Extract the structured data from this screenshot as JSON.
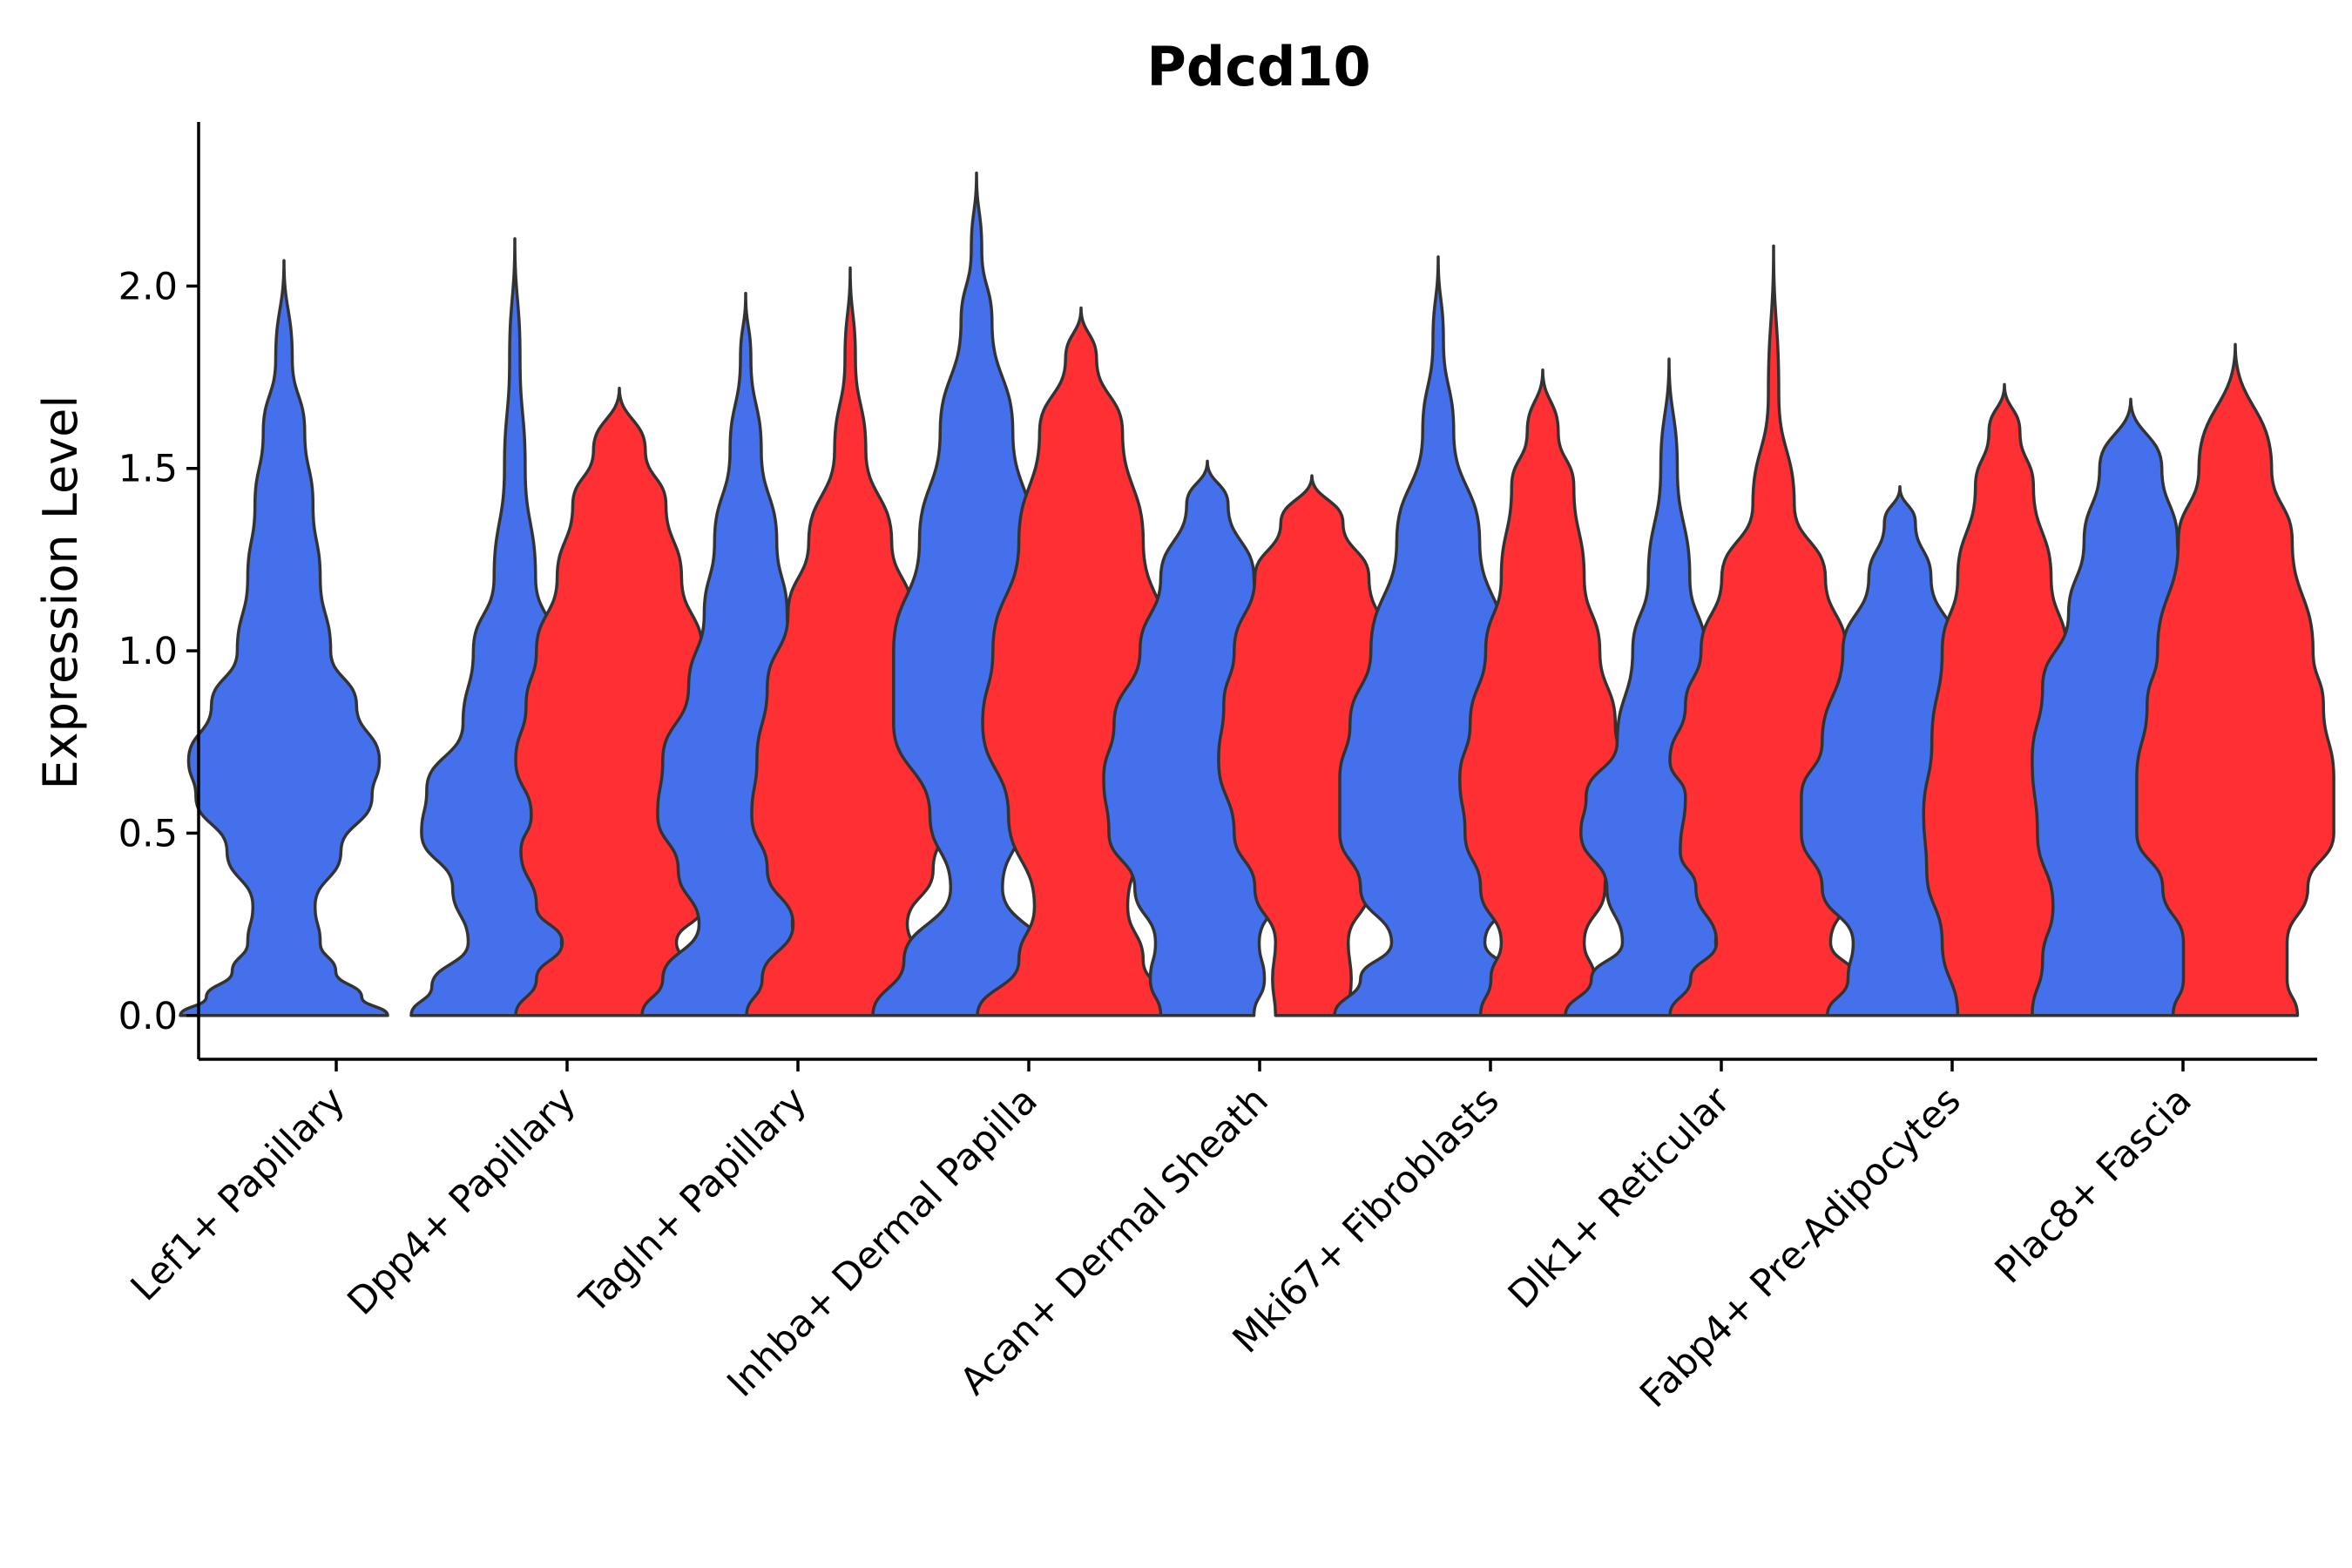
{
  "chart_data": {
    "type": "violin",
    "title": "Pdcd10",
    "xlabel": "",
    "ylabel": "Expression Level",
    "ylim": [
      -0.12,
      2.45
    ],
    "yticks": [
      0.0,
      0.5,
      1.0,
      1.5,
      2.0
    ],
    "ytick_labels": [
      "0.0",
      "0.5",
      "1.0",
      "1.5",
      "2.0"
    ],
    "grid": false,
    "legend": "none",
    "colors": {
      "group1": "#4570EB",
      "group2": "#FF3033"
    },
    "categories": [
      "Lef1+ Papillary",
      "Dpp4+ Papillary",
      "Tagln+ Papillary",
      "Inhba+ Dermal Papilla",
      "Acan+ Dermal Sheath",
      "Mki67+ Fibroblasts",
      "Dlk1+ Reticular",
      "Fabp4+ Pre-Adipocytes",
      "Plac8+ Fascia"
    ],
    "violins": [
      {
        "category": 0,
        "group": 1,
        "max": 2.07,
        "profile": [
          [
            0,
            1
          ],
          [
            0.05,
            0.75
          ],
          [
            0.12,
            0.5
          ],
          [
            0.2,
            0.35
          ],
          [
            0.3,
            0.3
          ],
          [
            0.45,
            0.55
          ],
          [
            0.6,
            0.85
          ],
          [
            0.7,
            0.92
          ],
          [
            0.85,
            0.7
          ],
          [
            1.0,
            0.45
          ],
          [
            1.2,
            0.35
          ],
          [
            1.4,
            0.28
          ],
          [
            1.6,
            0.2
          ],
          [
            1.8,
            0.08
          ],
          [
            2.07,
            0
          ]
        ]
      },
      {
        "category": 1,
        "group": 1,
        "max": 2.13,
        "profile": [
          [
            0,
            1
          ],
          [
            0.08,
            0.8
          ],
          [
            0.2,
            0.45
          ],
          [
            0.35,
            0.6
          ],
          [
            0.5,
            0.9
          ],
          [
            0.62,
            0.85
          ],
          [
            0.8,
            0.5
          ],
          [
            1.0,
            0.4
          ],
          [
            1.2,
            0.2
          ],
          [
            1.5,
            0.1
          ],
          [
            1.8,
            0.05
          ],
          [
            2.13,
            0
          ]
        ]
      },
      {
        "category": 1,
        "group": 2,
        "max": 1.72,
        "profile": [
          [
            0,
            1
          ],
          [
            0.1,
            0.8
          ],
          [
            0.2,
            0.55
          ],
          [
            0.3,
            0.8
          ],
          [
            0.45,
            0.95
          ],
          [
            0.55,
            0.85
          ],
          [
            0.7,
            1.0
          ],
          [
            0.85,
            0.9
          ],
          [
            1.0,
            0.8
          ],
          [
            1.2,
            0.6
          ],
          [
            1.4,
            0.45
          ],
          [
            1.55,
            0.25
          ],
          [
            1.72,
            0
          ]
        ]
      },
      {
        "category": 2,
        "group": 1,
        "max": 1.98,
        "profile": [
          [
            0,
            1
          ],
          [
            0.1,
            0.8
          ],
          [
            0.25,
            0.45
          ],
          [
            0.4,
            0.65
          ],
          [
            0.55,
            0.85
          ],
          [
            0.7,
            0.8
          ],
          [
            0.9,
            0.55
          ],
          [
            1.1,
            0.4
          ],
          [
            1.3,
            0.3
          ],
          [
            1.55,
            0.15
          ],
          [
            1.8,
            0.05
          ],
          [
            1.98,
            0
          ]
        ]
      },
      {
        "category": 2,
        "group": 2,
        "max": 2.05,
        "profile": [
          [
            0,
            1
          ],
          [
            0.1,
            0.85
          ],
          [
            0.25,
            0.55
          ],
          [
            0.4,
            0.8
          ],
          [
            0.55,
            0.95
          ],
          [
            0.7,
            0.9
          ],
          [
            0.9,
            0.8
          ],
          [
            1.1,
            0.6
          ],
          [
            1.3,
            0.4
          ],
          [
            1.55,
            0.15
          ],
          [
            1.8,
            0.05
          ],
          [
            2.05,
            0
          ]
        ]
      },
      {
        "category": 3,
        "group": 1,
        "max": 2.31,
        "profile": [
          [
            0,
            1
          ],
          [
            0.15,
            0.7
          ],
          [
            0.35,
            0.25
          ],
          [
            0.55,
            0.45
          ],
          [
            0.8,
            0.8
          ],
          [
            1.0,
            0.8
          ],
          [
            1.3,
            0.55
          ],
          [
            1.6,
            0.35
          ],
          [
            1.9,
            0.15
          ],
          [
            2.1,
            0.05
          ],
          [
            2.31,
            0
          ]
        ]
      },
      {
        "category": 3,
        "group": 2,
        "max": 1.94,
        "profile": [
          [
            0,
            1
          ],
          [
            0.15,
            0.6
          ],
          [
            0.3,
            0.45
          ],
          [
            0.55,
            0.7
          ],
          [
            0.8,
            0.95
          ],
          [
            1.0,
            0.85
          ],
          [
            1.3,
            0.6
          ],
          [
            1.6,
            0.4
          ],
          [
            1.8,
            0.15
          ],
          [
            1.94,
            0
          ]
        ]
      },
      {
        "category": 4,
        "group": 1,
        "max": 1.52,
        "profile": [
          [
            0,
            0.45
          ],
          [
            0.1,
            0.55
          ],
          [
            0.2,
            0.5
          ],
          [
            0.35,
            0.7
          ],
          [
            0.5,
            0.95
          ],
          [
            0.65,
            1.0
          ],
          [
            0.8,
            0.9
          ],
          [
            1.0,
            0.65
          ],
          [
            1.2,
            0.45
          ],
          [
            1.4,
            0.2
          ],
          [
            1.52,
            0
          ]
        ]
      },
      {
        "category": 4,
        "group": 2,
        "max": 1.48,
        "profile": [
          [
            0,
            0.35
          ],
          [
            0.1,
            0.38
          ],
          [
            0.2,
            0.35
          ],
          [
            0.35,
            0.55
          ],
          [
            0.5,
            0.75
          ],
          [
            0.7,
            0.9
          ],
          [
            0.85,
            0.85
          ],
          [
            1.0,
            0.75
          ],
          [
            1.2,
            0.55
          ],
          [
            1.35,
            0.3
          ],
          [
            1.48,
            0
          ]
        ]
      },
      {
        "category": 5,
        "group": 1,
        "max": 2.08,
        "profile": [
          [
            0,
            1
          ],
          [
            0.1,
            0.75
          ],
          [
            0.2,
            0.45
          ],
          [
            0.35,
            0.75
          ],
          [
            0.5,
            0.95
          ],
          [
            0.65,
            0.95
          ],
          [
            0.8,
            0.85
          ],
          [
            1.0,
            0.65
          ],
          [
            1.3,
            0.4
          ],
          [
            1.6,
            0.15
          ],
          [
            1.85,
            0.05
          ],
          [
            2.08,
            0
          ]
        ]
      },
      {
        "category": 5,
        "group": 2,
        "max": 1.77,
        "profile": [
          [
            0,
            0.6
          ],
          [
            0.1,
            0.5
          ],
          [
            0.2,
            0.4
          ],
          [
            0.35,
            0.6
          ],
          [
            0.5,
            0.75
          ],
          [
            0.65,
            0.8
          ],
          [
            0.8,
            0.7
          ],
          [
            1.0,
            0.55
          ],
          [
            1.2,
            0.4
          ],
          [
            1.45,
            0.3
          ],
          [
            1.6,
            0.15
          ],
          [
            1.77,
            0
          ]
        ]
      },
      {
        "category": 6,
        "group": 1,
        "max": 1.8,
        "profile": [
          [
            0,
            1
          ],
          [
            0.1,
            0.75
          ],
          [
            0.2,
            0.45
          ],
          [
            0.35,
            0.6
          ],
          [
            0.5,
            0.85
          ],
          [
            0.6,
            0.8
          ],
          [
            0.75,
            0.5
          ],
          [
            1.0,
            0.35
          ],
          [
            1.2,
            0.2
          ],
          [
            1.5,
            0.08
          ],
          [
            1.8,
            0
          ]
        ]
      },
      {
        "category": 6,
        "group": 2,
        "max": 2.11,
        "profile": [
          [
            0,
            1
          ],
          [
            0.1,
            0.8
          ],
          [
            0.2,
            0.55
          ],
          [
            0.35,
            0.75
          ],
          [
            0.45,
            0.9
          ],
          [
            0.6,
            0.85
          ],
          [
            0.7,
            1.0
          ],
          [
            0.85,
            0.85
          ],
          [
            1.0,
            0.7
          ],
          [
            1.2,
            0.5
          ],
          [
            1.4,
            0.2
          ],
          [
            1.7,
            0.05
          ],
          [
            2.11,
            0
          ]
        ]
      },
      {
        "category": 7,
        "group": 1,
        "max": 1.45,
        "profile": [
          [
            0,
            0.7
          ],
          [
            0.1,
            0.5
          ],
          [
            0.2,
            0.45
          ],
          [
            0.35,
            0.75
          ],
          [
            0.5,
            0.95
          ],
          [
            0.6,
            0.95
          ],
          [
            0.75,
            0.75
          ],
          [
            1.0,
            0.55
          ],
          [
            1.2,
            0.3
          ],
          [
            1.35,
            0.15
          ],
          [
            1.45,
            0
          ]
        ]
      },
      {
        "category": 7,
        "group": 2,
        "max": 1.73,
        "profile": [
          [
            0,
            0.45
          ],
          [
            0.2,
            0.6
          ],
          [
            0.4,
            0.75
          ],
          [
            0.55,
            0.78
          ],
          [
            0.75,
            0.7
          ],
          [
            1.0,
            0.6
          ],
          [
            1.2,
            0.45
          ],
          [
            1.45,
            0.28
          ],
          [
            1.6,
            0.15
          ],
          [
            1.73,
            0
          ]
        ]
      },
      {
        "category": 8,
        "group": 1,
        "max": 1.69,
        "profile": [
          [
            0,
            0.95
          ],
          [
            0.15,
            0.85
          ],
          [
            0.3,
            0.75
          ],
          [
            0.5,
            0.9
          ],
          [
            0.7,
            0.95
          ],
          [
            0.9,
            0.85
          ],
          [
            1.1,
            0.6
          ],
          [
            1.3,
            0.45
          ],
          [
            1.5,
            0.3
          ],
          [
            1.69,
            0
          ]
        ]
      },
      {
        "category": 8,
        "group": 2,
        "max": 1.84,
        "profile": [
          [
            0,
            0.6
          ],
          [
            0.1,
            0.5
          ],
          [
            0.2,
            0.5
          ],
          [
            0.35,
            0.7
          ],
          [
            0.5,
            0.95
          ],
          [
            0.65,
            0.95
          ],
          [
            0.85,
            0.85
          ],
          [
            1.0,
            0.75
          ],
          [
            1.3,
            0.55
          ],
          [
            1.5,
            0.35
          ],
          [
            1.84,
            0
          ]
        ]
      }
    ]
  }
}
